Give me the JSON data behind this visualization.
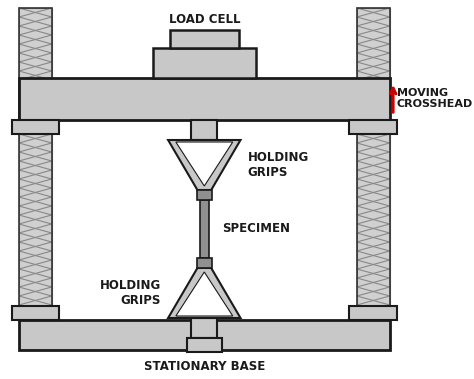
{
  "bg_color": "#ffffff",
  "gray": "#c8c8c8",
  "gray_dark": "#a0a0a0",
  "black": "#1a1a1a",
  "red": "#cc0000",
  "white": "#ffffff",
  "label_load_cell": "LOAD CELL",
  "label_moving_crosshead": "MOVING\nCROSSHEAD",
  "label_holding_grips_top": "HOLDING\nGRIPS",
  "label_holding_grips_bot": "HOLDING\nGRIPS",
  "label_specimen": "SPECIMEN",
  "label_stationary_base": "STATIONARY BASE",
  "figw": 4.74,
  "figh": 3.79,
  "dpi": 100
}
